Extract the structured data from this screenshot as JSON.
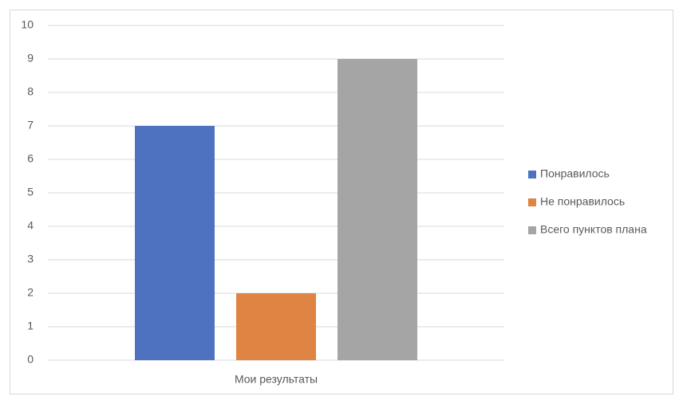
{
  "chart_data": {
    "type": "bar",
    "categories": [
      "Мои результаты"
    ],
    "series": [
      {
        "name": "Понравилось",
        "color": "#4f72c0",
        "values": [
          7
        ]
      },
      {
        "name": "Не понравилось",
        "color": "#e08444",
        "values": [
          2
        ]
      },
      {
        "name": "Всего пунктов плана",
        "color": "#a5a5a5",
        "values": [
          9
        ]
      }
    ],
    "ylim": [
      0,
      10
    ],
    "yticks": [
      0,
      1,
      2,
      3,
      4,
      5,
      6,
      7,
      8,
      9,
      10
    ],
    "grid": true,
    "legend": "right"
  }
}
